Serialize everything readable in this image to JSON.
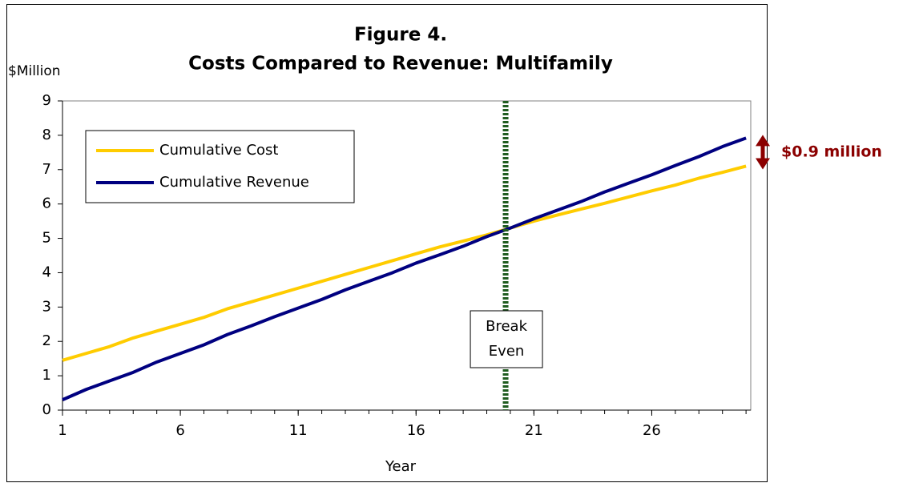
{
  "chart_data": {
    "type": "line",
    "title": "Figure 4.",
    "subtitle": "Costs Compared to Revenue: Multifamily",
    "y_label": "$Million",
    "x_label": "Year",
    "x": [
      1,
      2,
      3,
      4,
      5,
      6,
      7,
      8,
      9,
      10,
      11,
      12,
      13,
      14,
      15,
      16,
      17,
      18,
      19,
      20,
      21,
      22,
      23,
      24,
      25,
      26,
      27,
      28,
      29,
      30
    ],
    "xlim": [
      1,
      30.2
    ],
    "xticks": [
      1,
      6,
      11,
      16,
      21,
      26
    ],
    "ylim": [
      0,
      9
    ],
    "yticks": [
      0,
      1,
      2,
      3,
      4,
      5,
      6,
      7,
      8,
      9
    ],
    "grid": false,
    "legend": "upper left",
    "series": [
      {
        "name": "Cumulative Cost",
        "color": "#ffcc00",
        "values": [
          1.45,
          1.65,
          1.85,
          2.1,
          2.3,
          2.5,
          2.7,
          2.95,
          3.15,
          3.35,
          3.55,
          3.75,
          3.95,
          4.15,
          4.35,
          4.55,
          4.75,
          4.92,
          5.1,
          5.3,
          5.5,
          5.68,
          5.85,
          6.02,
          6.2,
          6.38,
          6.55,
          6.75,
          6.92,
          7.1
        ]
      },
      {
        "name": "Cumulative Revenue",
        "color": "#000080",
        "values": [
          0.3,
          0.6,
          0.85,
          1.1,
          1.4,
          1.65,
          1.9,
          2.2,
          2.45,
          2.72,
          2.97,
          3.22,
          3.5,
          3.75,
          4.0,
          4.28,
          4.52,
          4.77,
          5.05,
          5.3,
          5.57,
          5.82,
          6.07,
          6.35,
          6.6,
          6.85,
          7.12,
          7.38,
          7.67,
          7.92
        ]
      }
    ],
    "break_even": {
      "x": 19.8,
      "label": [
        "Break",
        "Even"
      ],
      "color": "#1f5c1f"
    },
    "difference": {
      "text": "$0.9 million",
      "color": "#8b0000"
    }
  }
}
